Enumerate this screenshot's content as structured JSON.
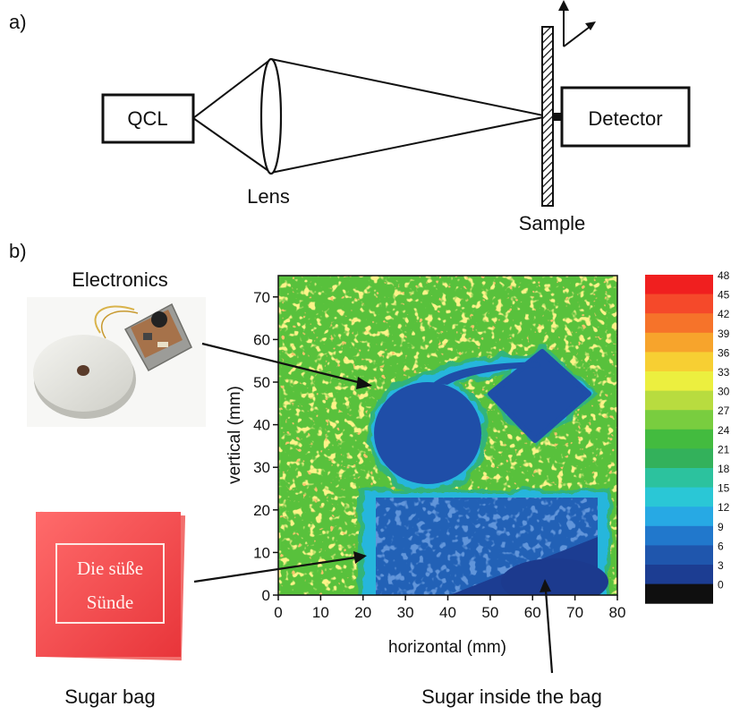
{
  "panel_a": {
    "label": "a)",
    "qcl": "QCL",
    "lens": "Lens",
    "detector": "Detector",
    "sample": "Sample"
  },
  "panel_b": {
    "label": "b)",
    "electronics": "Electronics",
    "sugar_bag": "Sugar bag",
    "sugar_inside": "Sugar inside the bag",
    "bag_print_line1": "Die süße",
    "bag_print_line2": "Sünde"
  },
  "map": {
    "xlabel": "horizontal (mm)",
    "ylabel": "vertical (mm)",
    "xticks": [
      "0",
      "10",
      "20",
      "30",
      "40",
      "50",
      "60",
      "70",
      "80"
    ],
    "yticks": [
      "0",
      "10",
      "20",
      "30",
      "40",
      "50",
      "60",
      "70"
    ],
    "xlim": [
      0,
      80
    ],
    "ylim": [
      0,
      75
    ],
    "colorbar_ticks": [
      "48",
      "45",
      "42",
      "39",
      "36",
      "33",
      "30",
      "27",
      "24",
      "21",
      "18",
      "15",
      "12",
      "9",
      "6",
      "3",
      "0"
    ],
    "colorbar_colors": [
      "#f01f1f",
      "#f5492a",
      "#f6732a",
      "#f7a42c",
      "#f7cf33",
      "#ecef3f",
      "#b8dc3f",
      "#79cd3f",
      "#43bb3f",
      "#33b15b",
      "#2cc29e",
      "#2ac7d6",
      "#27a9e4",
      "#2178cc",
      "#1f56ad",
      "#1c3d92",
      "#0f0f0f"
    ]
  }
}
